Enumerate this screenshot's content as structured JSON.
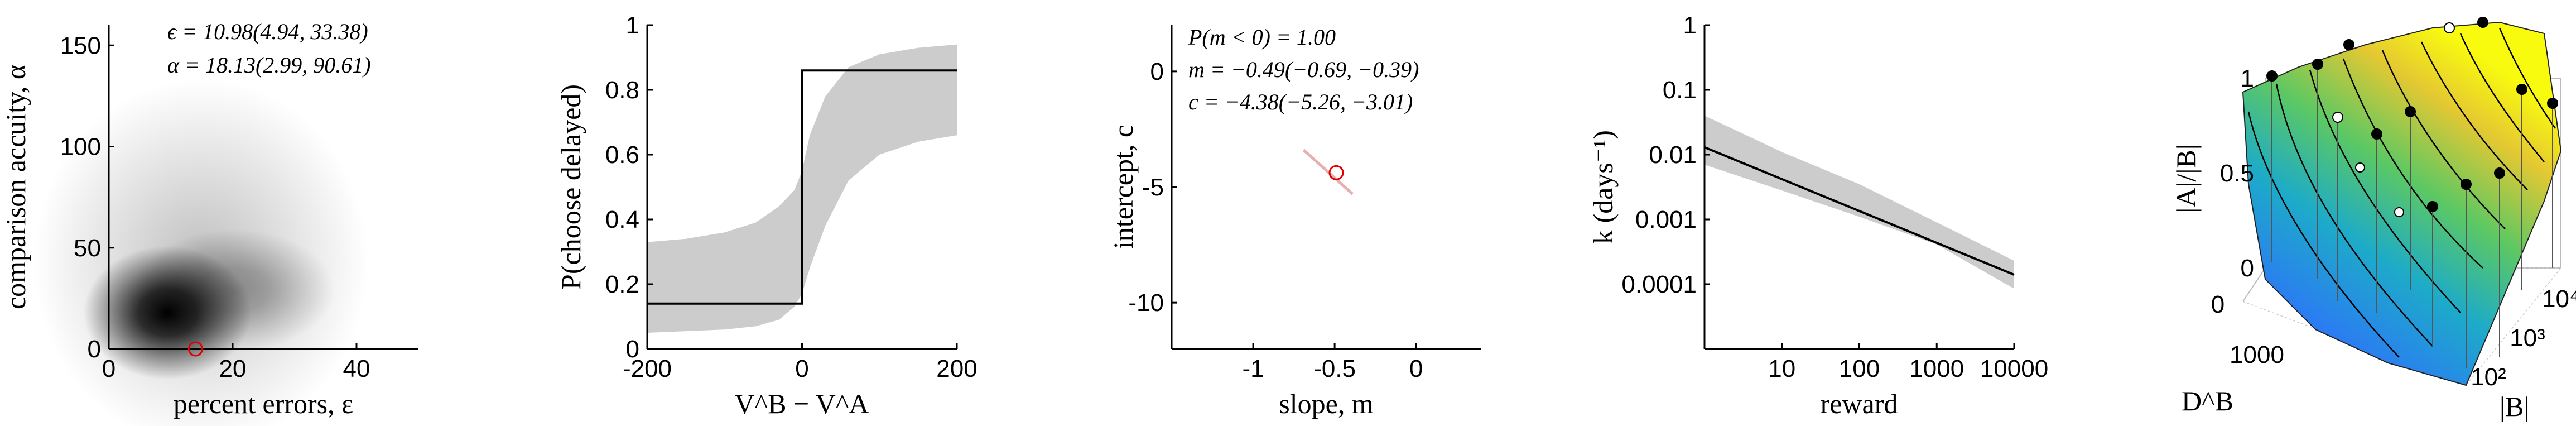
{
  "chart_data": [
    {
      "type": "heatmap",
      "xlabel": "percent errors, ε",
      "ylabel": "comparison accuity, α",
      "xlim": [
        0,
        50
      ],
      "ylim": [
        0,
        160
      ],
      "xticks": [
        "0",
        "20",
        "40"
      ],
      "yticks": [
        "0",
        "50",
        "100",
        "150"
      ],
      "annotations": [
        "ϵ = 10.98(4.94, 33.38)",
        "α = 18.13(2.99, 90.61)"
      ],
      "marker": {
        "x": 14,
        "y": 0
      },
      "density_peak": {
        "x": 11,
        "y": 10
      }
    },
    {
      "type": "line",
      "xlabel": "V^B − V^A",
      "ylabel": "P(choose delayed)",
      "xlim": [
        -200,
        200
      ],
      "ylim": [
        0,
        1
      ],
      "xticks": [
        "-200",
        "0",
        "200"
      ],
      "yticks": [
        "0",
        "0.2",
        "0.4",
        "0.6",
        "0.8",
        "1"
      ],
      "series": [
        {
          "x": [
            -200,
            -0.1,
            0.1,
            200
          ],
          "y": [
            0.14,
            0.14,
            0.86,
            0.86
          ]
        }
      ],
      "band_x": [
        -200,
        -150,
        -100,
        -60,
        -30,
        -10,
        0,
        10,
        30,
        60,
        100,
        150,
        200
      ],
      "band_lower": [
        0.05,
        0.055,
        0.06,
        0.07,
        0.09,
        0.13,
        0.17,
        0.25,
        0.38,
        0.52,
        0.6,
        0.64,
        0.66
      ],
      "band_upper": [
        0.33,
        0.34,
        0.36,
        0.39,
        0.44,
        0.49,
        0.55,
        0.66,
        0.78,
        0.87,
        0.91,
        0.93,
        0.94
      ]
    },
    {
      "type": "scatter",
      "xlabel": "slope, m",
      "ylabel": "intercept, c",
      "xlim": [
        -1.5,
        0.4
      ],
      "ylim": [
        -12,
        2
      ],
      "xticks": [
        "-1",
        "-0.5",
        "0"
      ],
      "yticks": [
        "-10",
        "-5",
        "0"
      ],
      "annotations": [
        "P(m < 0) = 1.00",
        "m = −0.49(−0.69, −0.39)",
        "c = −4.38(−5.26, −3.01)"
      ],
      "marker": {
        "x": -0.49,
        "y": -4.38
      },
      "posterior_line": {
        "x": [
          -0.69,
          -0.39
        ],
        "y": [
          -3.4,
          -5.3
        ]
      }
    },
    {
      "type": "line",
      "xlabel": "reward",
      "ylabel": "k (days⁻¹)",
      "log_x": true,
      "log_y": true,
      "xlim": [
        1,
        10000
      ],
      "ylim": [
        1e-05,
        1
      ],
      "xticks": [
        "10",
        "100",
        "1000",
        "10000"
      ],
      "yticks": [
        "0.0001",
        "0.001",
        "0.01",
        "0.1",
        "1"
      ],
      "series": [
        {
          "x": [
            1,
            10000
          ],
          "y": [
            0.013,
            0.00014
          ]
        }
      ],
      "band_x": [
        1,
        10,
        100,
        1000,
        10000
      ],
      "band_lower": [
        0.007,
        0.0028,
        0.0011,
        0.00041,
        8.5e-05
      ],
      "band_upper": [
        0.04,
        0.011,
        0.0035,
        0.0009,
        0.00023
      ]
    },
    {
      "type": "area",
      "surface_3d": true,
      "xlabel": "|B|",
      "ylabel": "D^B",
      "zlabel": "|A|/|B|",
      "zlim": [
        0,
        1
      ],
      "zticks": [
        "0",
        "0.5",
        "1"
      ],
      "yticks": [
        "0",
        "1000"
      ],
      "xticks": [
        "10²",
        "10³",
        "10⁴"
      ],
      "colormap": [
        "#3e26a8",
        "#2b7bf3",
        "#1dabc8",
        "#5cc863",
        "#e4c832",
        "#f9fb0e"
      ]
    }
  ],
  "colors": {
    "band": "#cccccc",
    "marker": "#e00000",
    "line": "#000000"
  }
}
